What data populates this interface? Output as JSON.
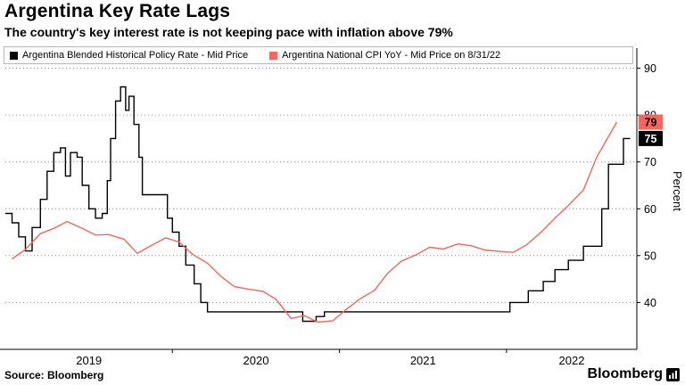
{
  "header": {
    "title": "Argentina Key Rate Lags",
    "subtitle": "The country's key interest rate is not keeping pace with inflation above 79%"
  },
  "footer": {
    "source": "Source: Bloomberg",
    "brand": "Bloomberg"
  },
  "chart_data": {
    "type": "line",
    "ylabel": "Percent",
    "ylim": [
      30,
      92
    ],
    "yticks": [
      40,
      50,
      60,
      70,
      80,
      90
    ],
    "xlim": [
      2019.0,
      2022.78
    ],
    "xtick_years": [
      2019,
      2020,
      2021,
      2022
    ],
    "grid": "horizontal-dotted",
    "legend_position": "top",
    "axis_color": "#000000",
    "grid_color": "#8f8f8f",
    "series": [
      {
        "name": "Argentina Blended Historical Policy Rate - Mid Price",
        "color": "#000000",
        "style": "step",
        "end_label": {
          "text": "75",
          "bg": "#000000",
          "fg": "#ffffff"
        },
        "points": [
          [
            2019.0,
            59
          ],
          [
            2019.04,
            57
          ],
          [
            2019.08,
            54
          ],
          [
            2019.12,
            51
          ],
          [
            2019.16,
            56
          ],
          [
            2019.21,
            62
          ],
          [
            2019.25,
            68
          ],
          [
            2019.29,
            72
          ],
          [
            2019.33,
            73
          ],
          [
            2019.36,
            67
          ],
          [
            2019.39,
            72
          ],
          [
            2019.43,
            71
          ],
          [
            2019.46,
            65
          ],
          [
            2019.5,
            60
          ],
          [
            2019.54,
            58
          ],
          [
            2019.58,
            59
          ],
          [
            2019.61,
            66
          ],
          [
            2019.63,
            75
          ],
          [
            2019.66,
            83
          ],
          [
            2019.69,
            86
          ],
          [
            2019.72,
            81
          ],
          [
            2019.74,
            84
          ],
          [
            2019.77,
            78
          ],
          [
            2019.8,
            71
          ],
          [
            2019.82,
            63
          ],
          [
            2019.94,
            63
          ],
          [
            2019.97,
            58
          ],
          [
            2020.0,
            55
          ],
          [
            2020.04,
            52
          ],
          [
            2020.08,
            48
          ],
          [
            2020.13,
            44
          ],
          [
            2020.17,
            40
          ],
          [
            2020.21,
            38
          ],
          [
            2020.75,
            38
          ],
          [
            2020.78,
            36
          ],
          [
            2020.86,
            37
          ],
          [
            2020.91,
            38
          ],
          [
            2021.98,
            38
          ],
          [
            2022.02,
            40
          ],
          [
            2022.13,
            42.5
          ],
          [
            2022.22,
            44.5
          ],
          [
            2022.29,
            47
          ],
          [
            2022.37,
            49
          ],
          [
            2022.46,
            52
          ],
          [
            2022.57,
            60
          ],
          [
            2022.61,
            69.5
          ],
          [
            2022.7,
            75
          ],
          [
            2022.74,
            75
          ]
        ]
      },
      {
        "name": "Argentina National CPI YoY - Mid Price on 8/31/22",
        "color": "#f4665e",
        "style": "linear",
        "end_label": {
          "text": "79",
          "bg": "#f4665e",
          "fg": "#000000"
        },
        "points": [
          [
            2019.04,
            49.3
          ],
          [
            2019.12,
            51.3
          ],
          [
            2019.21,
            54.7
          ],
          [
            2019.29,
            55.8
          ],
          [
            2019.37,
            57.3
          ],
          [
            2019.46,
            55.8
          ],
          [
            2019.54,
            54.4
          ],
          [
            2019.62,
            54.5
          ],
          [
            2019.71,
            53.5
          ],
          [
            2019.79,
            50.5
          ],
          [
            2019.87,
            52.1
          ],
          [
            2019.96,
            53.8
          ],
          [
            2020.04,
            52.9
          ],
          [
            2020.12,
            50.3
          ],
          [
            2020.21,
            48.4
          ],
          [
            2020.29,
            45.6
          ],
          [
            2020.37,
            43.4
          ],
          [
            2020.46,
            42.8
          ],
          [
            2020.54,
            42.4
          ],
          [
            2020.62,
            40.7
          ],
          [
            2020.71,
            36.6
          ],
          [
            2020.79,
            37.2
          ],
          [
            2020.87,
            35.8
          ],
          [
            2020.96,
            36.1
          ],
          [
            2021.04,
            38.5
          ],
          [
            2021.12,
            40.7
          ],
          [
            2021.21,
            42.6
          ],
          [
            2021.29,
            46.3
          ],
          [
            2021.37,
            48.8
          ],
          [
            2021.46,
            50.2
          ],
          [
            2021.54,
            51.8
          ],
          [
            2021.62,
            51.4
          ],
          [
            2021.71,
            52.5
          ],
          [
            2021.79,
            52.1
          ],
          [
            2021.87,
            51.2
          ],
          [
            2021.96,
            50.9
          ],
          [
            2022.04,
            50.7
          ],
          [
            2022.12,
            52.3
          ],
          [
            2022.21,
            55.1
          ],
          [
            2022.29,
            58.0
          ],
          [
            2022.37,
            60.7
          ],
          [
            2022.46,
            64.0
          ],
          [
            2022.54,
            71.0
          ],
          [
            2022.66,
            78.5
          ]
        ]
      }
    ]
  }
}
